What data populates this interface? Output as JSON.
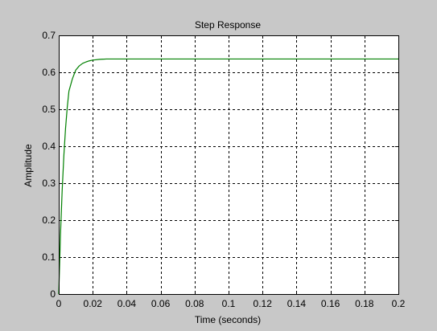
{
  "chart_data": {
    "type": "line",
    "title": "Step Response",
    "xlabel": "Time (seconds)",
    "ylabel": "Amplitude",
    "xlim": [
      0,
      0.2
    ],
    "ylim": [
      0,
      0.7
    ],
    "grid": true,
    "x_ticks": [
      "0",
      "0.02",
      "0.04",
      "0.06",
      "0.08",
      "0.1",
      "0.12",
      "0.14",
      "0.16",
      "0.18",
      "0.2"
    ],
    "y_ticks": [
      "0",
      "0.1",
      "0.2",
      "0.3",
      "0.4",
      "0.5",
      "0.6",
      "0.7"
    ],
    "series": [
      {
        "color": "#008000",
        "x": [
          0,
          0.001,
          0.002,
          0.003,
          0.004,
          0.005,
          0.006,
          0.008,
          0.01,
          0.012,
          0.014,
          0.016,
          0.018,
          0.02,
          0.024,
          0.028,
          0.032,
          0.04,
          0.06,
          0.08,
          0.1,
          0.12,
          0.14,
          0.16,
          0.18,
          0.2
        ],
        "y": [
          0,
          0.157,
          0.279,
          0.374,
          0.448,
          0.505,
          0.549,
          0.582,
          0.606,
          0.617,
          0.624,
          0.628,
          0.631,
          0.633,
          0.635,
          0.636,
          0.636,
          0.636,
          0.636,
          0.636,
          0.636,
          0.636,
          0.636,
          0.636,
          0.636,
          0.636
        ]
      }
    ]
  },
  "colors": {
    "figure_background": "#c8c8c8",
    "axes_background": "#ffffff",
    "grid": "#000000",
    "line": "#008000"
  }
}
